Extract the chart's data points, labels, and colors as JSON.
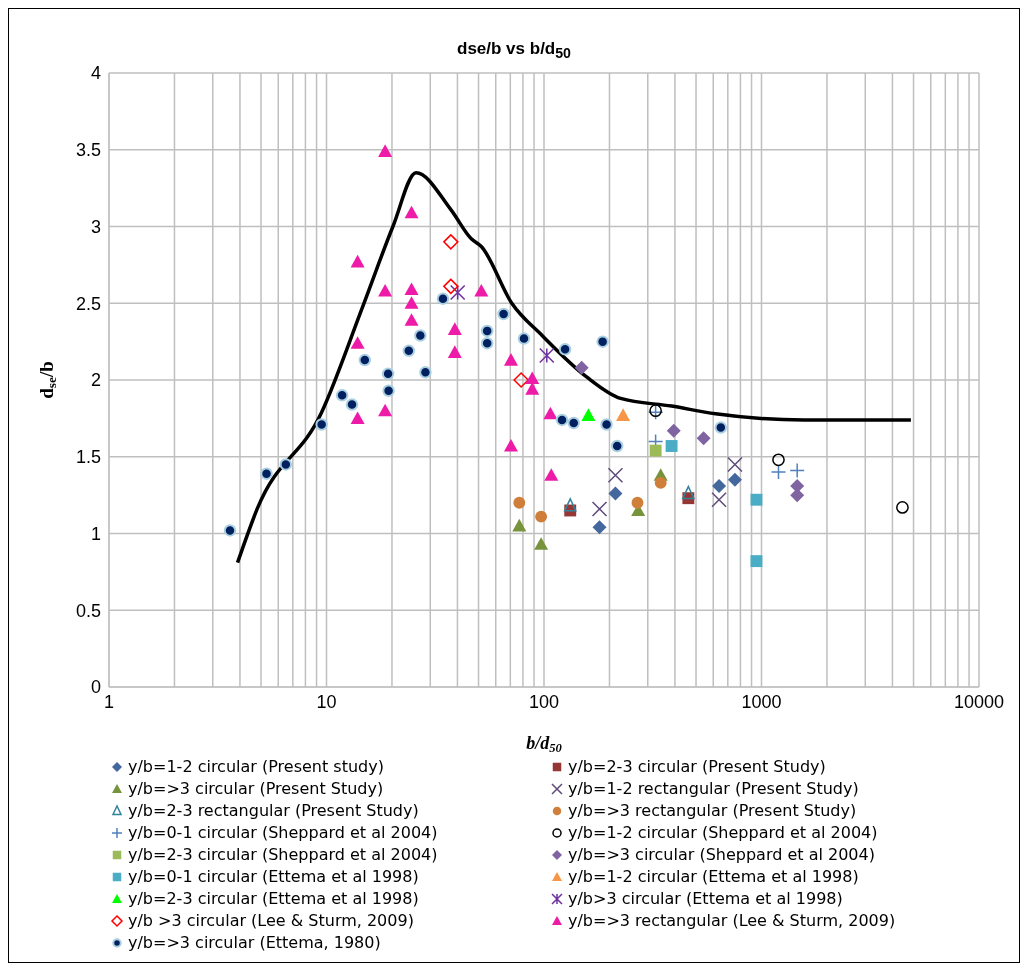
{
  "chart_data": {
    "type": "scatter",
    "title": "dse/b vs b/d$_{50}$",
    "xlabel": "b/d$_{50}$",
    "ylabel": "d$_{se}$/b",
    "log": "x",
    "grid": true,
    "legend": "bottom",
    "xlim": [
      1,
      10000
    ],
    "ylim": [
      0,
      4
    ],
    "xticks": [
      1,
      {
        "value": 2,
        "label": null
      },
      {
        "value": 3,
        "label": null
      },
      {
        "value": 4,
        "label": null
      },
      {
        "value": 5,
        "label": null
      },
      {
        "value": 6,
        "label": null
      },
      {
        "value": 7,
        "label": null
      },
      {
        "value": 8,
        "label": null
      },
      {
        "value": 9,
        "label": null
      },
      10,
      {
        "value": 20,
        "label": null
      },
      {
        "value": 30,
        "label": null
      },
      {
        "value": 40,
        "label": null
      },
      {
        "value": 50,
        "label": null
      },
      {
        "value": 60,
        "label": null
      },
      {
        "value": 70,
        "label": null
      },
      {
        "value": 80,
        "label": null
      },
      {
        "value": 90,
        "label": null
      },
      100,
      {
        "value": 200,
        "label": null
      },
      {
        "value": 300,
        "label": null
      },
      {
        "value": 400,
        "label": null
      },
      {
        "value": 500,
        "label": null
      },
      {
        "value": 600,
        "label": null
      },
      {
        "value": 700,
        "label": null
      },
      {
        "value": 800,
        "label": null
      },
      {
        "value": 900,
        "label": null
      },
      1000,
      {
        "value": 2000,
        "label": null
      },
      {
        "value": 3000,
        "label": null
      },
      {
        "value": 4000,
        "label": null
      },
      {
        "value": 5000,
        "label": null
      },
      {
        "value": 6000,
        "label": null
      },
      {
        "value": 7000,
        "label": null
      },
      {
        "value": 8000,
        "label": null
      },
      {
        "value": 9000,
        "label": null
      },
      10000
    ],
    "yticks": [
      0,
      0.5,
      1,
      1.5,
      2,
      2.5,
      3,
      3.5,
      4
    ],
    "series": [
      {
        "name": "y/b=1-2 circular (Present study)",
        "color": "#44679e",
        "marker": "diamond",
        "x": [
          213,
          180,
          638,
          755
        ],
        "values": [
          1.26,
          1.04,
          1.31,
          1.35
        ]
      },
      {
        "name": "y/b=2-3 circular (Present Study)",
        "color": "#953735",
        "marker": "square",
        "x": [
          132,
          461
        ],
        "values": [
          1.15,
          1.23
        ]
      },
      {
        "name": "y/b=>3 circular (Present Study)",
        "color": "#77933c",
        "marker": "triangle",
        "x": [
          77,
          97,
          271,
          344
        ],
        "values": [
          1.05,
          0.93,
          1.15,
          1.38
        ]
      },
      {
        "name": "y/b=1-2 rectangular (Present Study)",
        "color": "#604a7b",
        "marker": "x",
        "x": [
          213,
          180,
          638,
          755
        ],
        "values": [
          1.38,
          1.16,
          1.22,
          1.45
        ]
      },
      {
        "name": "y/b=2-3 rectangular (Present Study)",
        "color": "#31849b",
        "marker": "triangle-open",
        "x": [
          132,
          461
        ],
        "values": [
          1.18,
          1.26
        ]
      },
      {
        "name": "y/b=>3 rectangular (Present Study)",
        "color": "#d07f3a",
        "marker": "circle",
        "x": [
          77,
          97,
          269,
          344
        ],
        "values": [
          1.2,
          1.11,
          1.2,
          1.33
        ]
      },
      {
        "name": "y/b=0-1 circular (Sheppard et al 2004)",
        "color": "#4f81bd",
        "marker": "plus",
        "x": [
          326,
          326,
          1197,
          1459
        ],
        "values": [
          1.79,
          1.6,
          1.4,
          1.41
        ]
      },
      {
        "name": "y/b=1-2 circular (Sheppard et al 2004)",
        "color": "#000000",
        "marker": "circle-open",
        "x": [
          326,
          1197,
          4446
        ],
        "values": [
          1.8,
          1.48,
          1.17
        ]
      },
      {
        "name": "y/b=2-3 circular (Sheppard et al 2004)",
        "color": "#9bbb59",
        "marker": "square",
        "x": [
          326
        ],
        "values": [
          1.54
        ]
      },
      {
        "name": "y/b=>3 circular (Sheppard et al 2004)",
        "color": "#8064a2",
        "marker": "diamond",
        "x": [
          149,
          395,
          542,
          1459,
          1459
        ],
        "values": [
          2.08,
          1.67,
          1.62,
          1.31,
          1.25
        ]
      },
      {
        "name": "y/b=0-1 circular (Ettema et al 1998)",
        "color": "#4bacc6",
        "marker": "square",
        "x": [
          386,
          948,
          948
        ],
        "values": [
          1.57,
          1.22,
          0.82
        ]
      },
      {
        "name": "y/b=1-2 circular (Ettema et al 1998)",
        "color": "#f79646",
        "marker": "triangle",
        "x": [
          231
        ],
        "values": [
          1.77
        ]
      },
      {
        "name": "y/b=2-3 circular (Ettema et al 1998)",
        "color": "#00ff00",
        "marker": "triangle",
        "x": [
          160
        ],
        "values": [
          1.77
        ]
      },
      {
        "name": "y/b>3 circular (Ettema et al 1998)",
        "color": "#7030a0",
        "marker": "cross",
        "x": [
          40.1,
          103
        ],
        "values": [
          2.57,
          2.16
        ]
      },
      {
        "name": "y/b >3 circular (Lee & Sturm, 2009)",
        "color": "#ff0000",
        "marker": "diamond-open",
        "x": [
          37.3,
          37.3,
          78.5
        ],
        "values": [
          2.9,
          2.61,
          2.0
        ]
      },
      {
        "name": "y/b=>3 rectangular (Lee & Sturm, 2009)",
        "color": "#ee1ba8",
        "marker": "triangle",
        "x": [
          18.6,
          24.6,
          13.9,
          18.6,
          24.6,
          24.6,
          24.6,
          38.9,
          38.9,
          13.9,
          18.6,
          13.9,
          51.5,
          70.5,
          88.3,
          88.3,
          107,
          70.5,
          108
        ],
        "values": [
          3.49,
          3.09,
          2.77,
          2.58,
          2.59,
          2.5,
          2.39,
          2.33,
          2.18,
          2.24,
          1.8,
          1.75,
          2.58,
          2.13,
          2.01,
          1.94,
          1.78,
          1.57,
          1.38
        ]
      },
      {
        "name": "y/b=>3 circular (Ettema, 1980)",
        "color": "#002060",
        "marker": "circle-edge",
        "x": [
          3.6,
          5.3,
          6.5,
          9.5,
          11.8,
          13.1,
          15,
          19.2,
          19.3,
          23.9,
          27,
          28.5,
          34.3,
          54.8,
          54.8,
          65.2,
          80.9,
          125,
          186,
          121,
          137,
          194,
          217,
          650
        ],
        "values": [
          1.02,
          1.39,
          1.45,
          1.71,
          1.9,
          1.84,
          2.13,
          2.04,
          1.93,
          2.19,
          2.29,
          2.05,
          2.53,
          2.24,
          2.32,
          2.43,
          2.27,
          2.2,
          2.25,
          1.74,
          1.72,
          1.71,
          1.57,
          1.69
        ]
      },
      {
        "type": "line",
        "color": "#000000",
        "marker": "none",
        "line_style": "solid",
        "x": [
          3.9,
          4.8,
          9.5,
          14.6,
          20.2,
          25.8,
          37.3,
          46.3,
          51.5,
          71.1,
          98,
          157,
          225,
          386,
          615,
          1567,
          4863
        ],
        "values": [
          0.81,
          1.16,
          1.79,
          2.47,
          3.0,
          3.35,
          3.11,
          2.92,
          2.87,
          2.5,
          2.29,
          2.02,
          1.88,
          1.83,
          1.78,
          1.74,
          1.74
        ]
      }
    ]
  }
}
